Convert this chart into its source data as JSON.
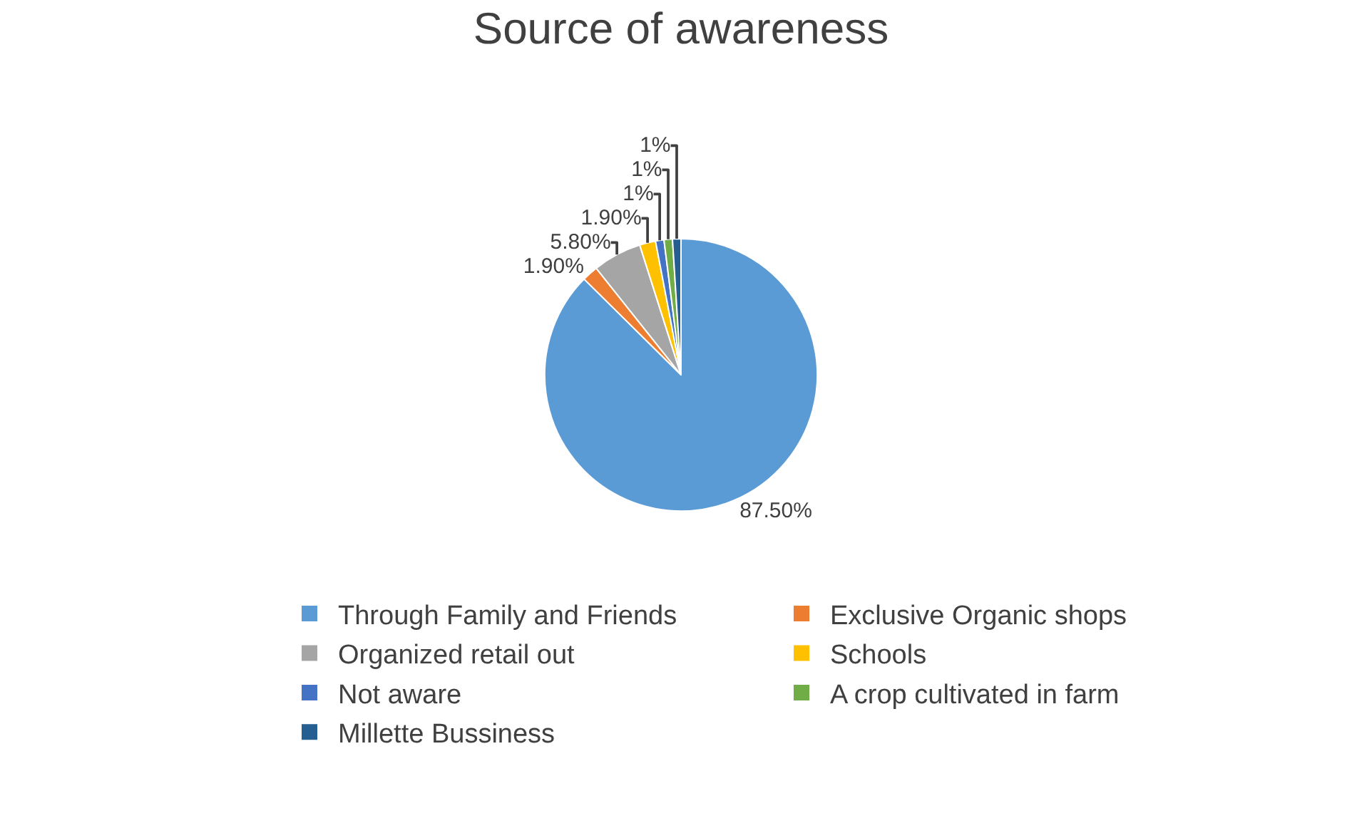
{
  "chart_data": {
    "type": "pie",
    "title": "Source of awareness",
    "categories": [
      "Through Family and Friends",
      "Exclusive Organic shops",
      "Organized retail out",
      "Schools",
      "Not aware",
      "A crop cultivated in farm",
      "Millette Bussiness"
    ],
    "values": [
      87.5,
      1.9,
      5.8,
      1.9,
      1,
      1,
      1
    ],
    "value_labels": [
      "87.50%",
      "1.90%",
      "5.80%",
      "1.90%",
      "1%",
      "1%",
      "1%"
    ],
    "colors": [
      "#5b9bd5",
      "#ed7d31",
      "#a5a5a5",
      "#ffc000",
      "#4472c4",
      "#70ad47",
      "#255e91"
    ],
    "legend": "bottom"
  }
}
